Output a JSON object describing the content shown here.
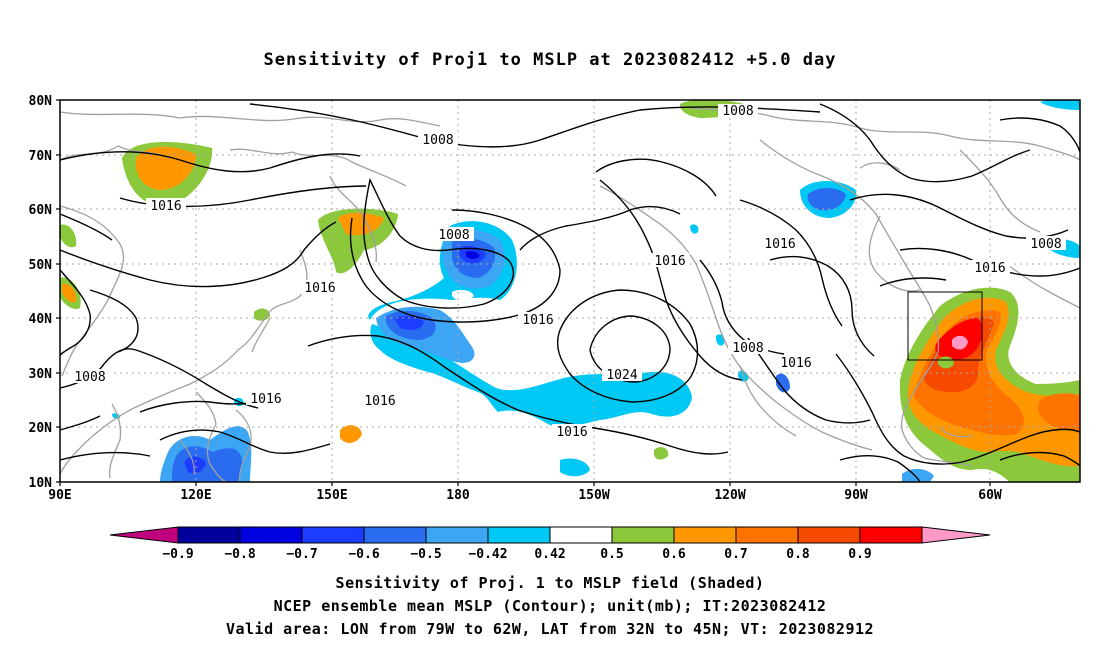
{
  "title": "Sensitivity of Proj1 to MSLP at 2023082412 +5.0 day",
  "lat_labels": [
    "80N",
    "70N",
    "60N",
    "50N",
    "40N",
    "30N",
    "20N",
    "10N"
  ],
  "lon_labels": [
    "90E",
    "120E",
    "150E",
    "180",
    "150W",
    "120W",
    "90W",
    "60W"
  ],
  "contour_labels": [
    {
      "text": "1008"
    },
    {
      "text": "1016"
    },
    {
      "text": "1008"
    },
    {
      "text": "1016"
    },
    {
      "text": "1016"
    },
    {
      "text": "1008"
    },
    {
      "text": "1016"
    },
    {
      "text": "1016"
    },
    {
      "text": "1016"
    },
    {
      "text": "1008"
    },
    {
      "text": "1016"
    },
    {
      "text": "1008"
    },
    {
      "text": "1016"
    },
    {
      "text": "1024"
    },
    {
      "text": "1008"
    },
    {
      "text": "1016"
    },
    {
      "text": "1016"
    }
  ],
  "colorbar": {
    "colors": [
      "#c0007f",
      "#00009c",
      "#0000e0",
      "#1c3cff",
      "#2a6cf0",
      "#3ca6f5",
      "#00c8f5",
      "#ffffff",
      "#8cc83c",
      "#ff9800",
      "#ff7400",
      "#f54a00",
      "#ff0000",
      "#ff99c8"
    ],
    "labels": [
      "−0.9",
      "−0.8",
      "−0.7",
      "−0.6",
      "−0.5",
      "−0.42",
      "0.42",
      "0.5",
      "0.6",
      "0.7",
      "0.8",
      "0.9"
    ]
  },
  "captions": [
    "Sensitivity of Proj. 1 to MSLP field (Shaded)",
    "NCEP ensemble mean MSLP (Contour); unit(mb); IT:2023082412",
    "Valid area: LON from 79W to 62W, LAT from 32N to 45N; VT: 2023082912"
  ]
}
